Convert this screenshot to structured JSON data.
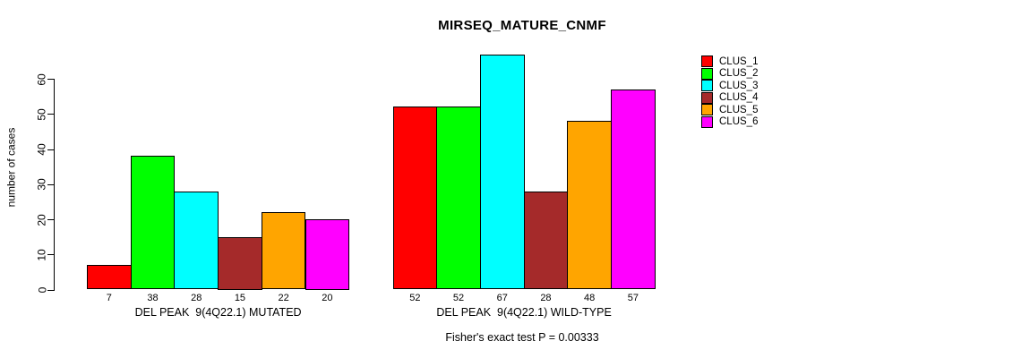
{
  "chart_data": {
    "type": "bar",
    "title": "MIRSEQ_MATURE_CNMF",
    "ylabel": "number of cases",
    "xlabel": "",
    "ylim": [
      0,
      60
    ],
    "yticks": [
      0,
      10,
      20,
      30,
      40,
      50,
      60
    ],
    "grid": false,
    "legend_position": "right",
    "bar_border_color": "#000000",
    "clusters": [
      {
        "name": "CLUS_1",
        "color": "#FF0000"
      },
      {
        "name": "CLUS_2",
        "color": "#00FF00"
      },
      {
        "name": "CLUS_3",
        "color": "#00FFFF"
      },
      {
        "name": "CLUS_4",
        "color": "#A52A2A"
      },
      {
        "name": "CLUS_5",
        "color": "#FFA500"
      },
      {
        "name": "CLUS_6",
        "color": "#FF00FF"
      }
    ],
    "groups": [
      {
        "label": "DEL PEAK  9(4Q22.1) MUTATED",
        "values": [
          7,
          38,
          28,
          15,
          22,
          20
        ]
      },
      {
        "label": "DEL PEAK  9(4Q22.1) WILD-TYPE",
        "values": [
          52,
          52,
          67,
          28,
          48,
          57
        ]
      }
    ],
    "footnote": "Fisher's exact test P = 0.00333"
  }
}
